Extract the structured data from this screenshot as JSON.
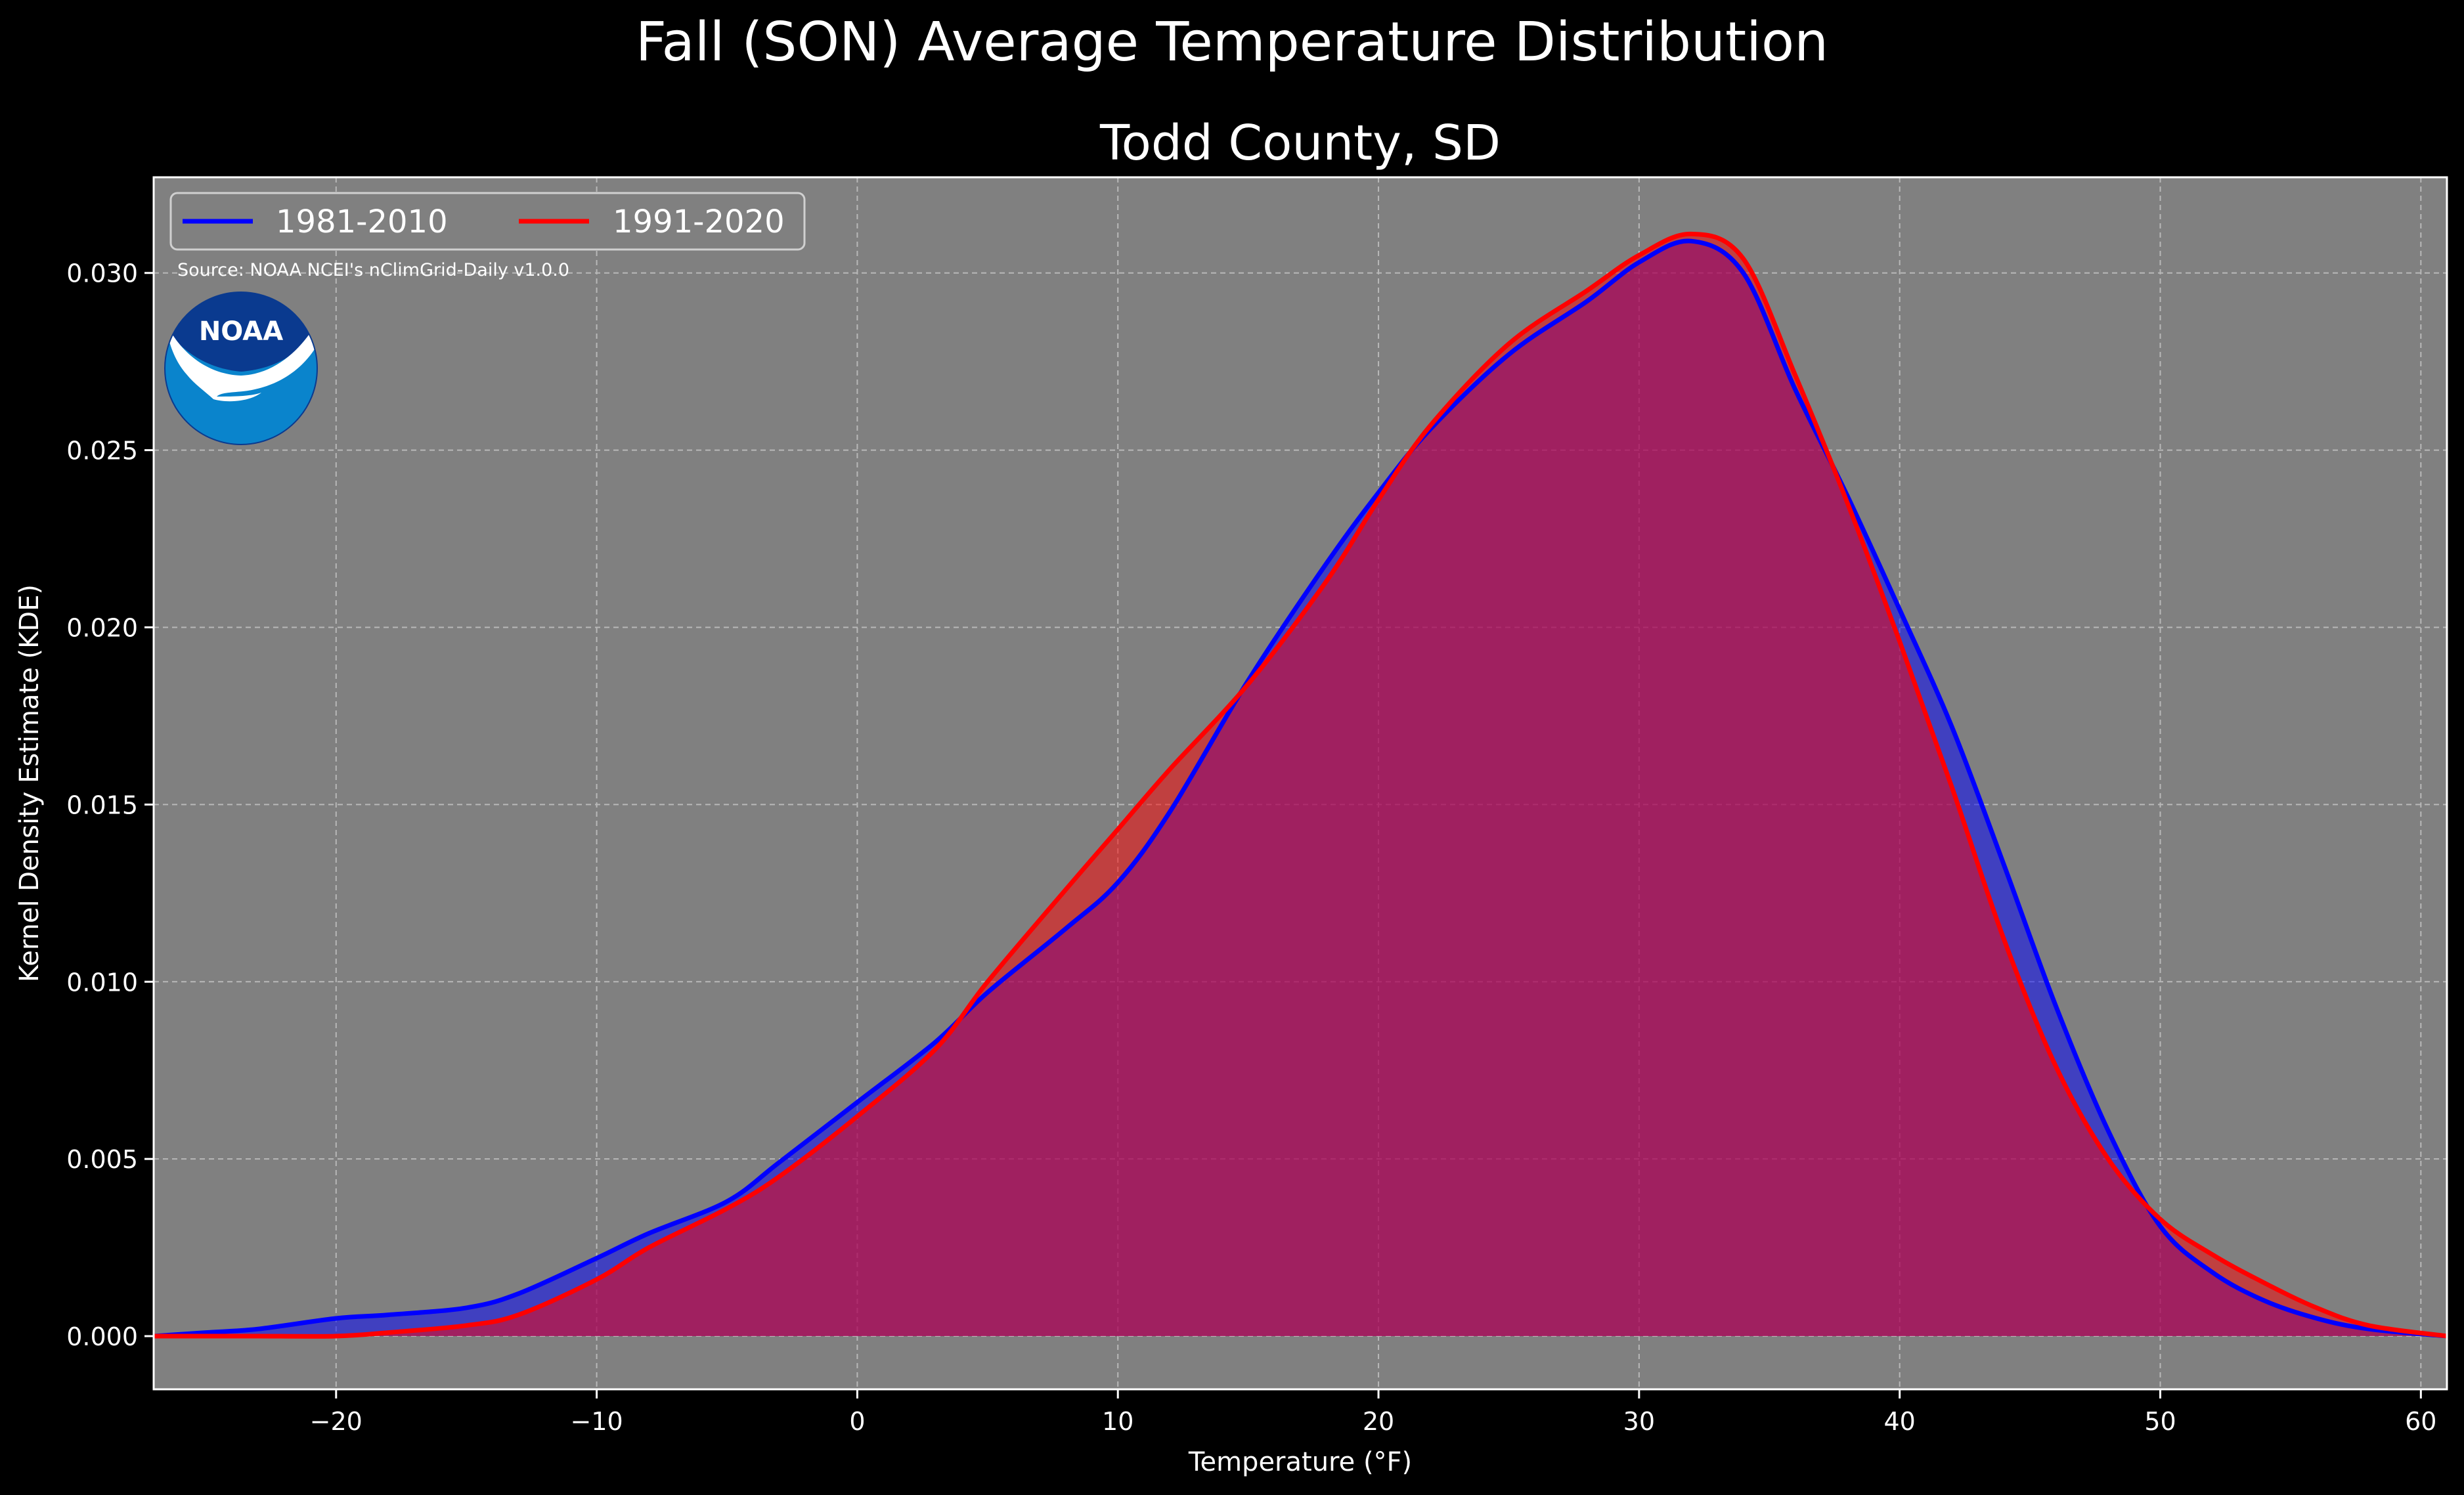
{
  "suptitle": "Fall (SON) Average Temperature Distribution",
  "title": "Todd County, SD",
  "source": "Source: NOAA NCEI's nClimGrid-Daily v1.0.0",
  "logo_text": "NOAA",
  "colors": {
    "background": "#000000",
    "plot_bg": "#808080",
    "grid": "#b8b8b8",
    "series_1981": "#0000ff",
    "series_1991": "#ff0000",
    "logo_dark": "#0a3a8f",
    "logo_light": "#0a84cc"
  },
  "chart_data": {
    "type": "area",
    "xlabel": "Temperature (°F)",
    "ylabel": "Kernel Density Estimate (KDE)",
    "xlim": [
      -27,
      61
    ],
    "ylim": [
      -0.0015,
      0.0327
    ],
    "x_ticks": [
      -20,
      -10,
      0,
      10,
      20,
      30,
      40,
      50,
      60
    ],
    "x_tick_labels": [
      "−20",
      "−10",
      "0",
      "10",
      "20",
      "30",
      "40",
      "50",
      "60"
    ],
    "y_ticks": [
      0,
      0.005,
      0.01,
      0.015,
      0.02,
      0.025,
      0.03
    ],
    "y_tick_labels": [
      "0.000",
      "0.005",
      "0.010",
      "0.015",
      "0.020",
      "0.025",
      "0.030"
    ],
    "grid": true,
    "legend_position": "top-left",
    "x": [
      -27,
      -25,
      -23,
      -20,
      -18,
      -15,
      -13,
      -10,
      -8,
      -5,
      -3,
      0,
      3,
      5,
      8,
      10,
      12,
      15,
      18,
      20,
      22,
      25,
      28,
      30,
      32,
      34,
      36,
      38,
      40,
      42,
      44,
      46,
      48,
      50,
      52,
      54,
      56,
      58,
      61
    ],
    "series": [
      {
        "name": "1981-2010",
        "color": "#0000ff",
        "values": [
          0.0,
          0.0001,
          0.0002,
          0.0005,
          0.0006,
          0.0008,
          0.0012,
          0.0022,
          0.0029,
          0.0038,
          0.0049,
          0.0066,
          0.0083,
          0.0097,
          0.0115,
          0.0128,
          0.0148,
          0.0185,
          0.0218,
          0.0238,
          0.0256,
          0.0277,
          0.0292,
          0.0303,
          0.0309,
          0.03,
          0.0267,
          0.0237,
          0.0205,
          0.0172,
          0.0133,
          0.0093,
          0.0058,
          0.0031,
          0.0018,
          0.001,
          0.0005,
          0.0002,
          0.0
        ]
      },
      {
        "name": "1991-2020",
        "color": "#ff0000",
        "values": [
          0.0,
          0.0,
          0.0,
          0.0,
          0.0001,
          0.0003,
          0.0006,
          0.0016,
          0.0025,
          0.0036,
          0.0045,
          0.0062,
          0.0081,
          0.01,
          0.0126,
          0.0143,
          0.016,
          0.0184,
          0.0213,
          0.0236,
          0.0257,
          0.028,
          0.0295,
          0.0305,
          0.0311,
          0.0304,
          0.0271,
          0.0235,
          0.0196,
          0.0155,
          0.0112,
          0.0076,
          0.005,
          0.0033,
          0.0023,
          0.0015,
          0.0008,
          0.0003,
          0.0
        ]
      }
    ]
  }
}
